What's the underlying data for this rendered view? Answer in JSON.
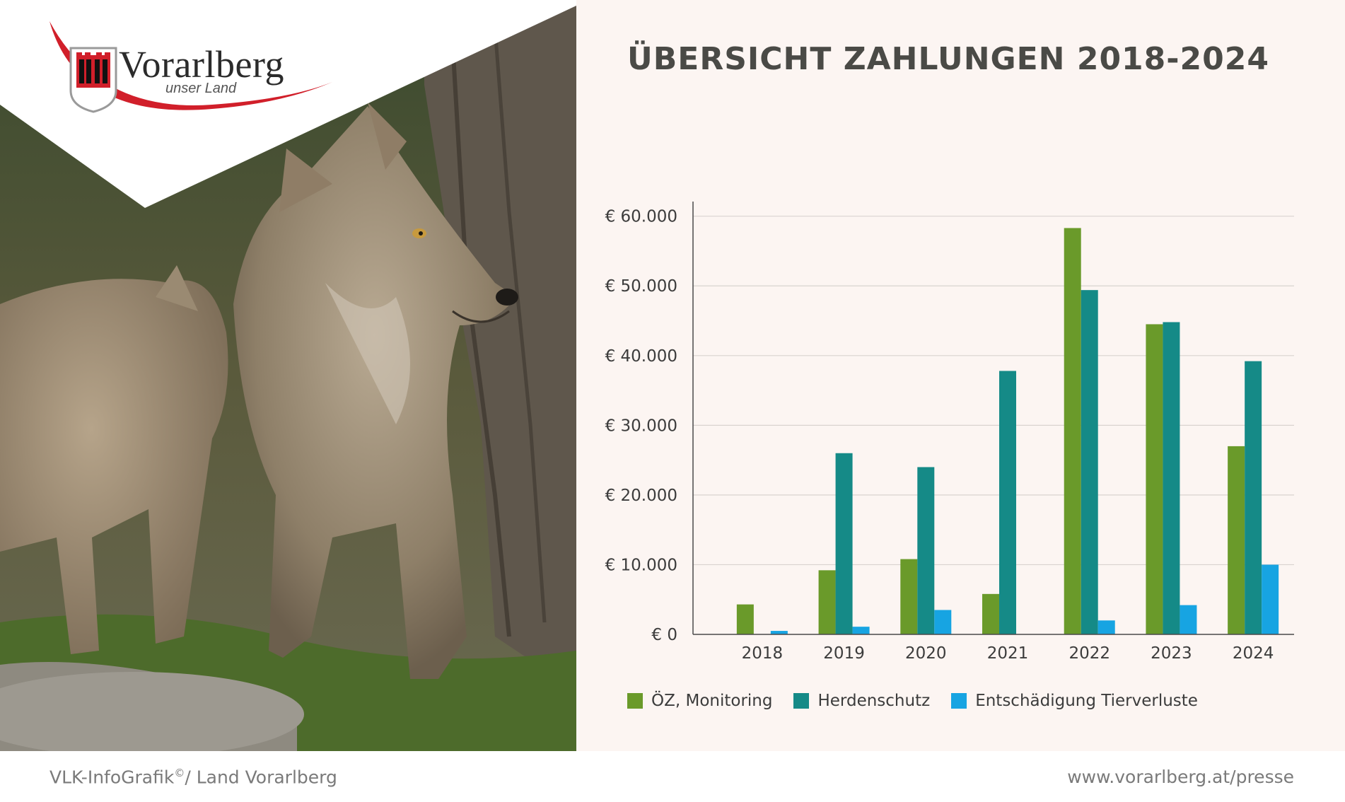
{
  "brand": {
    "name": "Vorarlberg",
    "tagline": "unser Land"
  },
  "title": "ÜBERSICHT ZAHLUNGEN 2018-2024",
  "footer": {
    "credit_main": "VLK-InfoGrafik",
    "credit_mark": "©",
    "credit_tail": "/ Land Vorarlberg",
    "website": "www.vorarlberg.at/presse"
  },
  "colors": {
    "series1": "#6a9a2a",
    "series2": "#158a87",
    "series3": "#17a4e2",
    "panel_bg": "#fcf5f2",
    "brand_red": "#d11f2a"
  },
  "chart_data": {
    "type": "bar",
    "title": "ÜBERSICHT ZAHLUNGEN 2018-2024",
    "xlabel": "",
    "ylabel": "",
    "categories": [
      "2018",
      "2019",
      "2020",
      "2021",
      "2022",
      "2023",
      "2024"
    ],
    "series": [
      {
        "name": "ÖZ, Monitoring",
        "values": [
          4300,
          9200,
          10800,
          5800,
          58300,
          44500,
          27000
        ]
      },
      {
        "name": "Herdenschutz",
        "values": [
          0,
          26000,
          24000,
          37800,
          49400,
          44800,
          39200
        ]
      },
      {
        "name": "Entschädigung Tierverluste",
        "values": [
          500,
          1100,
          3500,
          0,
          2000,
          4200,
          10000
        ]
      }
    ],
    "ylim": [
      0,
      60000
    ],
    "yticks": [
      0,
      10000,
      20000,
      30000,
      40000,
      50000,
      60000
    ],
    "ytick_labels": [
      "€ 0",
      "€ 10.000",
      "€ 20.000",
      "€ 30.000",
      "€ 40.000",
      "€ 50.000",
      "€ 60.000"
    ],
    "grid": true,
    "legend_position": "bottom"
  }
}
